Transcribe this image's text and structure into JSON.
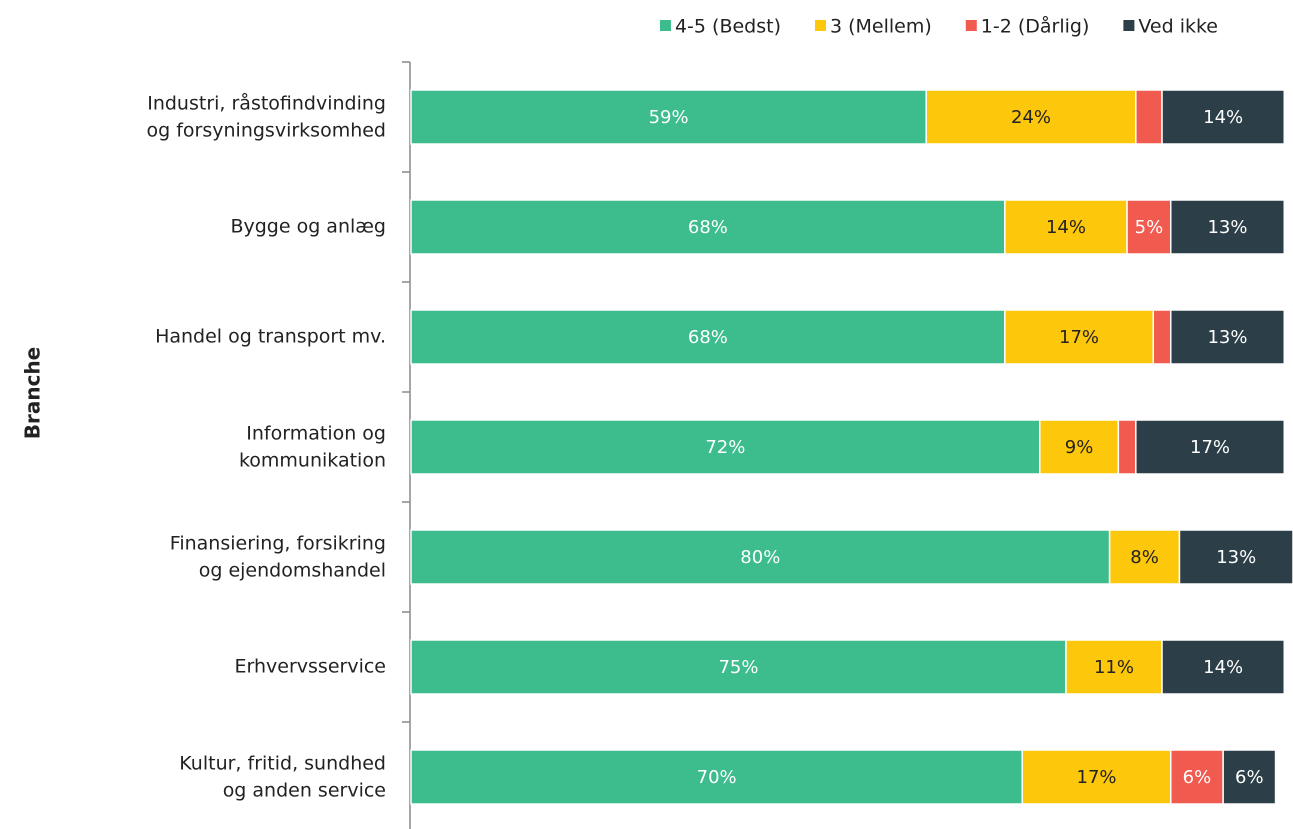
{
  "chart_data": {
    "type": "stacked-bar-horizontal",
    "y_axis_label": "Branche",
    "categories": [
      "Industri, råstofindvinding\nog forsyningsvirksomhed",
      "Bygge og anlæg",
      "Handel og transport mv.",
      "Information og\nkommunikation",
      "Finansiering, forsikring\nog ejendomshandel",
      "Erhvervsservice",
      "Kultur, fritid, sundhed\nog anden service"
    ],
    "series": [
      {
        "name": "4-5 (Bedst)",
        "color": "#3dbd8d",
        "values": [
          59,
          68,
          68,
          72,
          80,
          75,
          70
        ],
        "value_labels": [
          "59%",
          "68%",
          "68%",
          "72%",
          "80%",
          "75%",
          "70%"
        ]
      },
      {
        "name": "3 (Mellem)",
        "color": "#fdc70c",
        "values": [
          24,
          14,
          17,
          9,
          8,
          11,
          17
        ],
        "value_labels": [
          "24%",
          "14%",
          "17%",
          "9%",
          "8%",
          "11%",
          "17%"
        ]
      },
      {
        "name": "1-2 (Dårlig)",
        "color": "#f15a4f",
        "values": [
          3,
          5,
          2,
          2,
          0,
          0,
          6
        ],
        "value_labels": [
          null,
          "5%",
          null,
          null,
          null,
          null,
          "6%"
        ]
      },
      {
        "name": "Ved ikke",
        "color": "#2c3e47",
        "values": [
          14,
          13,
          13,
          17,
          13,
          14,
          6
        ],
        "value_labels": [
          "14%",
          "13%",
          "13%",
          "17%",
          "13%",
          "14%",
          "6%"
        ]
      }
    ],
    "xlim": [
      0,
      101
    ],
    "legend": "top"
  }
}
